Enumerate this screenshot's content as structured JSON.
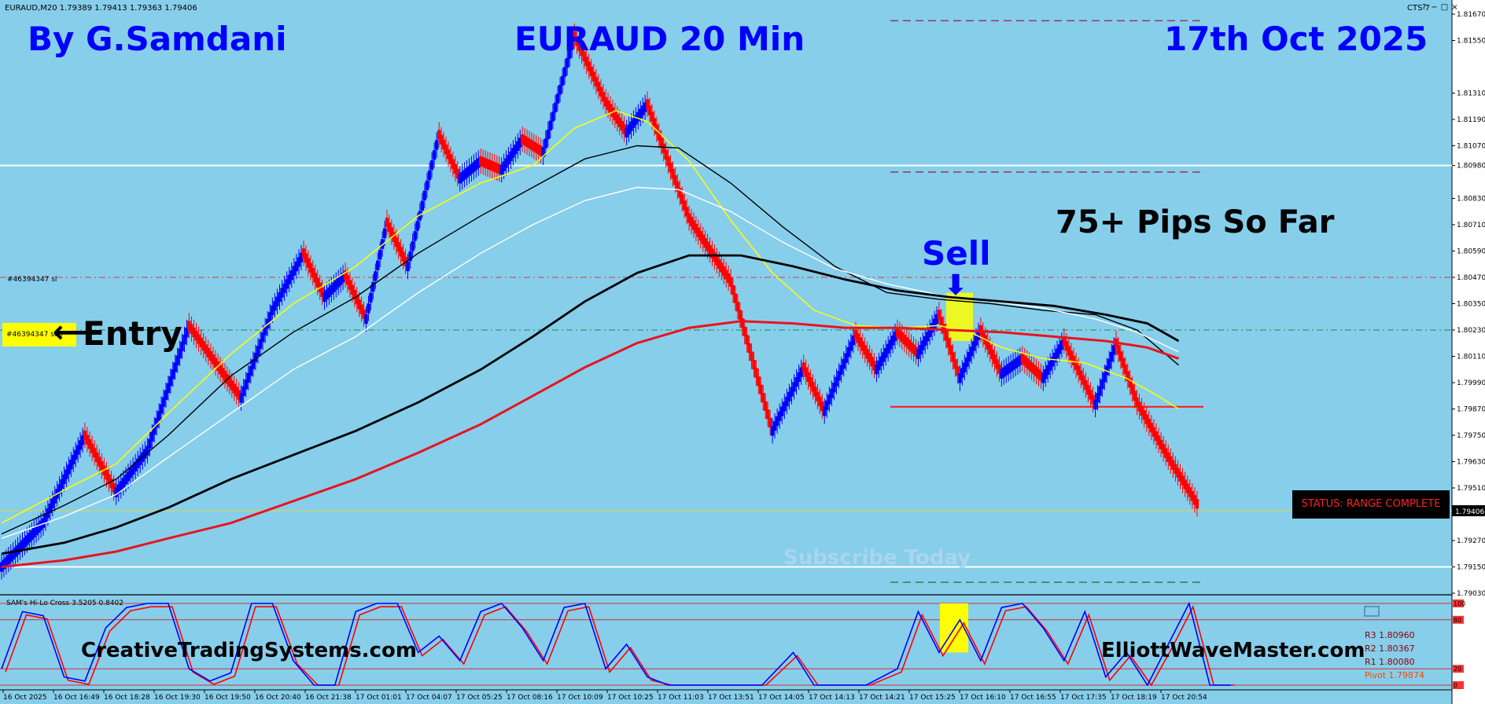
{
  "window": {
    "title": "EURAUD,M20  1.79389 1.79413 1.79363 1.79406",
    "cts": "CTS 7",
    "buttons": [
      "?",
      "−",
      "□",
      "×"
    ]
  },
  "overlay": {
    "author": "By G.Samdani",
    "chart_title": "EURAUD 20 Min",
    "date": "17th Oct 2025",
    "pips": "75+ Pips So Far",
    "sell_label": "Sell",
    "entry_label": "Entry",
    "entry_tag": "#46394347 sell",
    "sl_tag": "#46394347 sl",
    "status": "STATUS: RANGE COMPLETE",
    "subscribe": "Subscribe Today",
    "site_left": "CreativeTradingSystems.com",
    "site_right": "ElliottWaveMaster.com",
    "arrow_left": "⟵",
    "arrow_down": "⬇"
  },
  "oscillator": {
    "label": "SAM's Hi-Lo Cross 3.5205 0.8402",
    "levels": [
      "100",
      "80",
      "20",
      "0"
    ],
    "pivot_lines": [
      {
        "label": "R3  1.80960",
        "color": "#8b0000"
      },
      {
        "label": "R2  1.80367",
        "color": "#8b0000"
      },
      {
        "label": "R1  1.80080",
        "color": "#8b0000"
      },
      {
        "label": "Pivot  1.79874",
        "color": "#ff4500"
      }
    ]
  },
  "chart_data": {
    "type": "renko-candlestick",
    "symbol": "EURAUD",
    "timeframe": "M20",
    "ylim": [
      1.7903,
      1.8167
    ],
    "price_ticks": [
      1.8167,
      1.8155,
      1.8131,
      1.8119,
      1.8107,
      1.8098,
      1.8083,
      1.8071,
      1.8059,
      1.8047,
      1.8035,
      1.8023,
      1.8011,
      1.7999,
      1.7987,
      1.7975,
      1.7963,
      1.7951,
      1.79406,
      1.7927,
      1.7915,
      1.7903
    ],
    "price_tick_labels": [
      "1.81670",
      "1.81550",
      "1.81310",
      "1.81190",
      "1.81070",
      "1.80980",
      "1.80830",
      "1.80710",
      "1.80590",
      "1.80470",
      "1.80350",
      "1.80230",
      "1.80110",
      "1.79990",
      "1.79870",
      "1.79750",
      "1.79630",
      "1.79510",
      "1.79406",
      "1.79270",
      "1.79150",
      "1.79030"
    ],
    "time_labels": [
      "16 Oct 2025",
      "16 Oct 16:49",
      "16 Oct 18:28",
      "16 Oct 19:30",
      "16 Oct 19:50",
      "16 Oct 20:40",
      "16 Oct 21:38",
      "17 Oct 01:01",
      "17 Oct 04:07",
      "17 Oct 05:25",
      "17 Oct 08:16",
      "17 Oct 10:09",
      "17 Oct 10:25",
      "17 Oct 11:03",
      "17 Oct 13:51",
      "17 Oct 14:05",
      "17 Oct 14:13",
      "17 Oct 14:21",
      "17 Oct 15:25",
      "17 Oct 16:10",
      "17 Oct 16:55",
      "17 Oct 17:35",
      "17 Oct 18:19",
      "17 Oct 20:54"
    ],
    "current_price": 1.79406,
    "levels": {
      "white_upper": 1.8098,
      "white_lower": 1.7915,
      "stop_loss": 1.8047,
      "entry": 1.8023,
      "target": 1.7988,
      "purple_top": 1.8164,
      "purple_mid": 1.8095,
      "green_bottom": 1.7908
    },
    "path": [
      [
        0,
        1.7915
      ],
      [
        8,
        1.7935
      ],
      [
        16,
        1.7975
      ],
      [
        22,
        1.7949
      ],
      [
        28,
        1.7968
      ],
      [
        36,
        1.8025
      ],
      [
        42,
        1.8005
      ],
      [
        46,
        1.7992
      ],
      [
        52,
        1.8032
      ],
      [
        58,
        1.8058
      ],
      [
        62,
        1.8038
      ],
      [
        66,
        1.8048
      ],
      [
        70,
        1.8028
      ],
      [
        74,
        1.8072
      ],
      [
        78,
        1.8052
      ],
      [
        84,
        1.8112
      ],
      [
        88,
        1.8092
      ],
      [
        92,
        1.81
      ],
      [
        96,
        1.8096
      ],
      [
        100,
        1.811
      ],
      [
        104,
        1.8104
      ],
      [
        110,
        1.8157
      ],
      [
        116,
        1.8127
      ],
      [
        120,
        1.8113
      ],
      [
        124,
        1.8126
      ],
      [
        132,
        1.8074
      ],
      [
        140,
        1.8045
      ],
      [
        148,
        1.7977
      ],
      [
        154,
        1.8006
      ],
      [
        158,
        1.7986
      ],
      [
        164,
        1.8021
      ],
      [
        168,
        1.8005
      ],
      [
        172,
        1.8022
      ],
      [
        176,
        1.8012
      ],
      [
        180,
        1.803
      ],
      [
        184,
        1.8001
      ],
      [
        188,
        1.8023
      ],
      [
        192,
        1.8003
      ],
      [
        196,
        1.801
      ],
      [
        200,
        1.8001
      ],
      [
        204,
        1.8018
      ],
      [
        210,
        1.7989
      ],
      [
        214,
        1.8017
      ],
      [
        218,
        1.799
      ],
      [
        224,
        1.7965
      ],
      [
        230,
        1.7942
      ]
    ],
    "series": [
      {
        "name": "EMA yellow",
        "color": "#ffff00",
        "width": 1.5,
        "values": [
          [
            0,
            1.7935
          ],
          [
            12,
            1.795
          ],
          [
            22,
            1.7962
          ],
          [
            32,
            1.7985
          ],
          [
            44,
            1.8012
          ],
          [
            56,
            1.8035
          ],
          [
            68,
            1.8052
          ],
          [
            80,
            1.8075
          ],
          [
            92,
            1.809
          ],
          [
            102,
            1.8098
          ],
          [
            110,
            1.8115
          ],
          [
            118,
            1.8123
          ],
          [
            124,
            1.8118
          ],
          [
            132,
            1.81
          ],
          [
            140,
            1.8073
          ],
          [
            148,
            1.8049
          ],
          [
            156,
            1.8032
          ],
          [
            164,
            1.8025
          ],
          [
            172,
            1.8024
          ],
          [
            180,
            1.8025
          ],
          [
            186,
            1.8022
          ],
          [
            192,
            1.8015
          ],
          [
            200,
            1.801
          ],
          [
            208,
            1.8008
          ],
          [
            216,
            1.8001
          ],
          [
            222,
            1.7993
          ],
          [
            226,
            1.7987
          ]
        ]
      },
      {
        "name": "EMA black thin",
        "color": "#000000",
        "width": 1.4,
        "values": [
          [
            0,
            1.793
          ],
          [
            12,
            1.7943
          ],
          [
            22,
            1.7955
          ],
          [
            32,
            1.7975
          ],
          [
            44,
            1.8002
          ],
          [
            56,
            1.8022
          ],
          [
            68,
            1.8038
          ],
          [
            80,
            1.8058
          ],
          [
            92,
            1.8075
          ],
          [
            102,
            1.8088
          ],
          [
            112,
            1.8101
          ],
          [
            122,
            1.8107
          ],
          [
            130,
            1.8106
          ],
          [
            140,
            1.809
          ],
          [
            150,
            1.807
          ],
          [
            160,
            1.8052
          ],
          [
            170,
            1.804
          ],
          [
            180,
            1.8037
          ],
          [
            190,
            1.8035
          ],
          [
            200,
            1.8032
          ],
          [
            210,
            1.803
          ],
          [
            218,
            1.8023
          ],
          [
            226,
            1.8007
          ]
        ]
      },
      {
        "name": "EMA white",
        "color": "#ffffff",
        "width": 1.4,
        "values": [
          [
            0,
            1.7928
          ],
          [
            12,
            1.7938
          ],
          [
            22,
            1.7948
          ],
          [
            32,
            1.7965
          ],
          [
            44,
            1.7985
          ],
          [
            56,
            1.8005
          ],
          [
            68,
            1.802
          ],
          [
            80,
            1.804
          ],
          [
            92,
            1.8058
          ],
          [
            102,
            1.8071
          ],
          [
            112,
            1.8082
          ],
          [
            122,
            1.8088
          ],
          [
            130,
            1.8087
          ],
          [
            140,
            1.8077
          ],
          [
            150,
            1.8063
          ],
          [
            160,
            1.8051
          ],
          [
            170,
            1.8044
          ],
          [
            180,
            1.8039
          ],
          [
            190,
            1.8036
          ],
          [
            200,
            1.8033
          ],
          [
            210,
            1.8028
          ],
          [
            218,
            1.8022
          ],
          [
            226,
            1.8013
          ]
        ]
      },
      {
        "name": "EMA black thick",
        "color": "#000000",
        "width": 2.8,
        "values": [
          [
            0,
            1.7921
          ],
          [
            12,
            1.7926
          ],
          [
            22,
            1.7933
          ],
          [
            32,
            1.7942
          ],
          [
            44,
            1.7955
          ],
          [
            56,
            1.7966
          ],
          [
            68,
            1.7977
          ],
          [
            80,
            1.799
          ],
          [
            92,
            1.8005
          ],
          [
            102,
            1.802
          ],
          [
            112,
            1.8036
          ],
          [
            122,
            1.8049
          ],
          [
            132,
            1.8057
          ],
          [
            142,
            1.8057
          ],
          [
            152,
            1.8052
          ],
          [
            162,
            1.8046
          ],
          [
            172,
            1.8041
          ],
          [
            182,
            1.8038
          ],
          [
            192,
            1.8036
          ],
          [
            202,
            1.8034
          ],
          [
            212,
            1.803
          ],
          [
            220,
            1.8026
          ],
          [
            226,
            1.8018
          ]
        ]
      },
      {
        "name": "EMA red",
        "color": "#e8141e",
        "width": 3.0,
        "values": [
          [
            0,
            1.7915
          ],
          [
            12,
            1.7918
          ],
          [
            22,
            1.7922
          ],
          [
            32,
            1.7928
          ],
          [
            44,
            1.7935
          ],
          [
            56,
            1.7945
          ],
          [
            68,
            1.7955
          ],
          [
            80,
            1.7967
          ],
          [
            92,
            1.798
          ],
          [
            102,
            1.7993
          ],
          [
            112,
            1.8006
          ],
          [
            122,
            1.8017
          ],
          [
            132,
            1.8024
          ],
          [
            142,
            1.8027
          ],
          [
            152,
            1.8026
          ],
          [
            162,
            1.8024
          ],
          [
            172,
            1.8024
          ],
          [
            182,
            1.8023
          ],
          [
            192,
            1.8022
          ],
          [
            202,
            1.802
          ],
          [
            212,
            1.8018
          ],
          [
            220,
            1.8015
          ],
          [
            226,
            1.801
          ]
        ]
      }
    ],
    "oscillator_series": [
      {
        "name": "blue",
        "color": "#0000ff"
      },
      {
        "name": "red",
        "color": "#ff0000"
      }
    ],
    "oscillator_points": [
      [
        0,
        20
      ],
      [
        4,
        90
      ],
      [
        8,
        85
      ],
      [
        12,
        10
      ],
      [
        16,
        5
      ],
      [
        20,
        70
      ],
      [
        24,
        95
      ],
      [
        28,
        100
      ],
      [
        32,
        100
      ],
      [
        36,
        20
      ],
      [
        40,
        5
      ],
      [
        44,
        15
      ],
      [
        48,
        100
      ],
      [
        52,
        100
      ],
      [
        56,
        30
      ],
      [
        60,
        0
      ],
      [
        64,
        0
      ],
      [
        68,
        90
      ],
      [
        72,
        100
      ],
      [
        76,
        100
      ],
      [
        80,
        40
      ],
      [
        84,
        60
      ],
      [
        88,
        30
      ],
      [
        92,
        90
      ],
      [
        96,
        100
      ],
      [
        100,
        70
      ],
      [
        104,
        30
      ],
      [
        108,
        95
      ],
      [
        112,
        100
      ],
      [
        116,
        20
      ],
      [
        120,
        50
      ],
      [
        124,
        10
      ],
      [
        128,
        0
      ],
      [
        134,
        0
      ],
      [
        140,
        0
      ],
      [
        146,
        0
      ],
      [
        152,
        40
      ],
      [
        156,
        0
      ],
      [
        160,
        0
      ],
      [
        166,
        0
      ],
      [
        172,
        20
      ],
      [
        176,
        90
      ],
      [
        180,
        40
      ],
      [
        184,
        80
      ],
      [
        188,
        30
      ],
      [
        192,
        95
      ],
      [
        196,
        100
      ],
      [
        200,
        70
      ],
      [
        204,
        30
      ],
      [
        208,
        90
      ],
      [
        212,
        10
      ],
      [
        216,
        40
      ],
      [
        220,
        0
      ],
      [
        224,
        50
      ],
      [
        228,
        100
      ],
      [
        232,
        0
      ],
      [
        236,
        0
      ]
    ],
    "grid": false
  }
}
